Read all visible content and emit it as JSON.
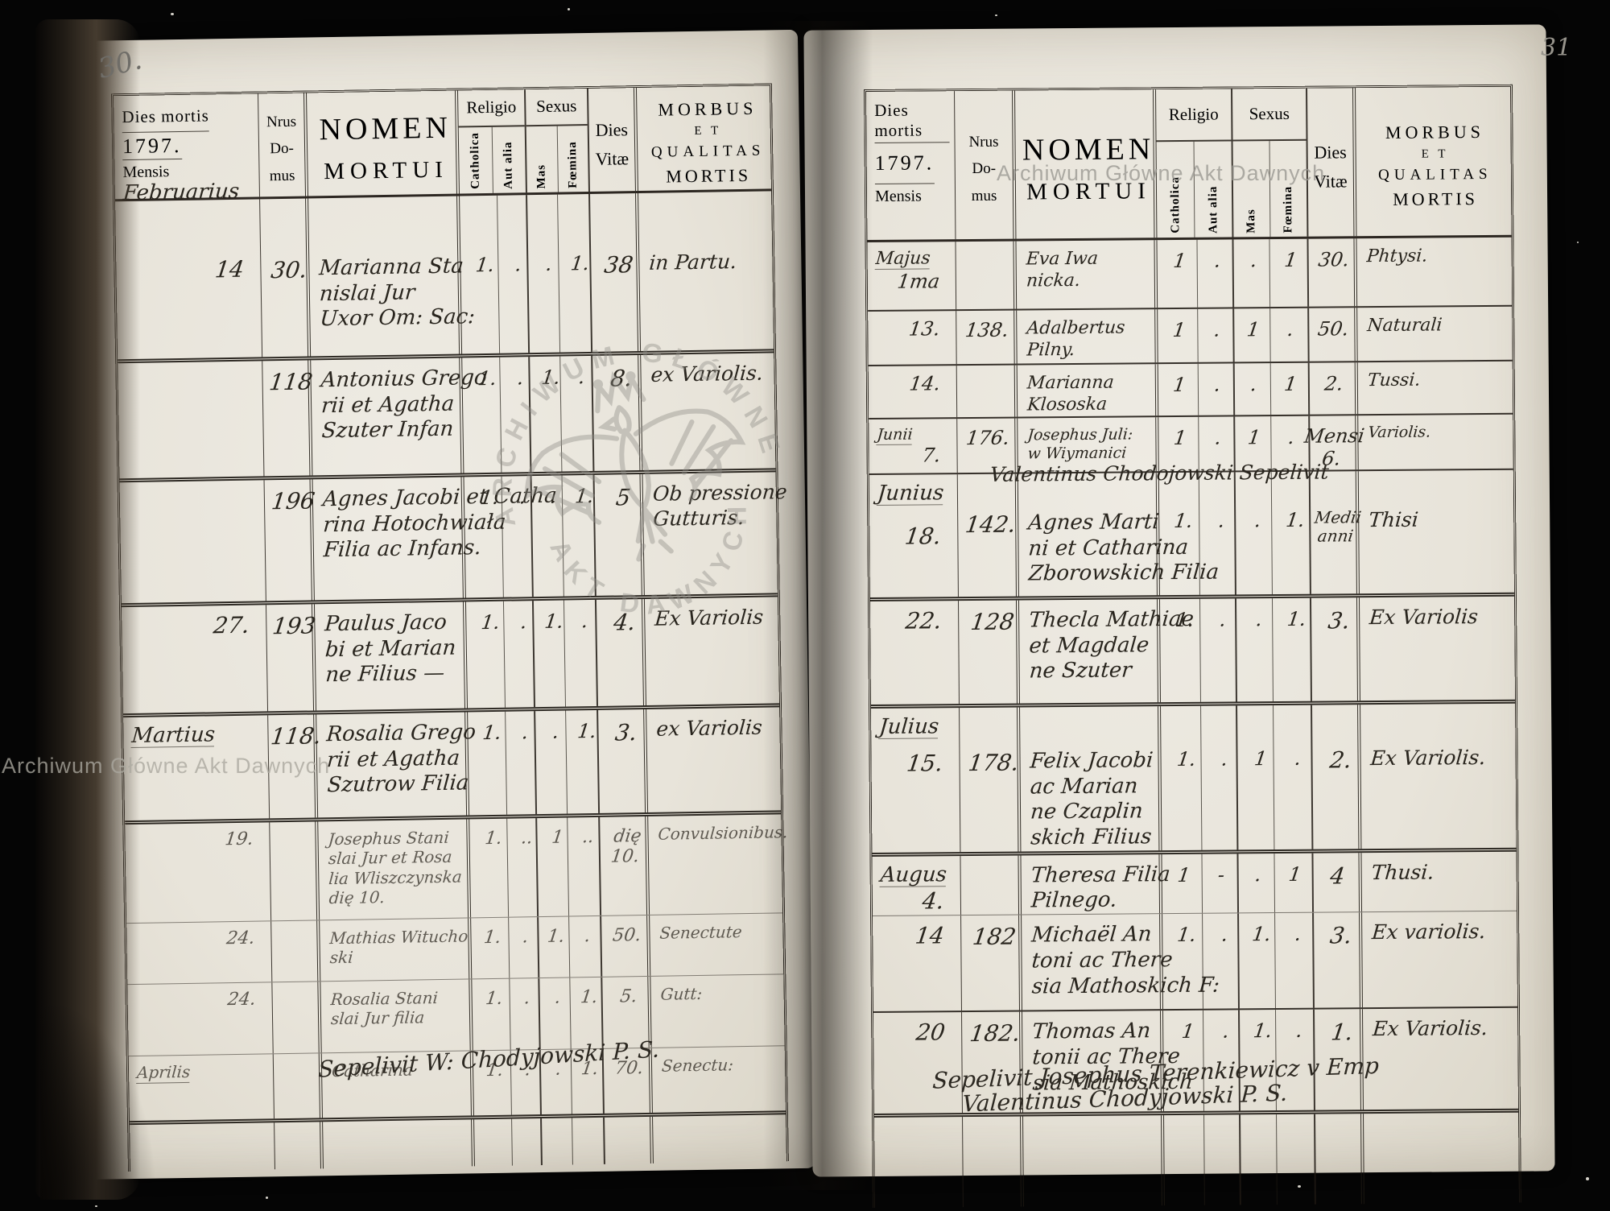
{
  "labels": {
    "dies_mortis": "Dies mortis",
    "mensis": "Mensis",
    "nrus": "Nrus",
    "domus_do": "Do-",
    "domus_mus": "mus",
    "nomen": "NOMEN",
    "mortui": "MORTUI",
    "religio": "Religio",
    "sexus": "Sexus",
    "catholica": "Catholica",
    "aut_alia": "Aut alia",
    "mas": "Mas",
    "foemina": "Fœmina",
    "dies": "Dies",
    "vitae": "Vitæ",
    "morbus": "MORBUS",
    "et": "E T",
    "qualitas": "QUALITAS",
    "mortis": "MORTIS"
  },
  "watermark": {
    "name_line": "Archiwum Główne Akt Dawnych",
    "seal_top": "ARCHIWUM GŁÓWNE",
    "seal_bottom": "AKT DAWNYCH"
  },
  "pages": [
    {
      "page_number": "30.",
      "year": "1797.",
      "mensis_hand": "Februarius",
      "rows": [
        {
          "day": "14",
          "nrus": "30.",
          "name": [
            "Marianna Sta",
            "nislai Jur",
            "Uxor Om: Sac:"
          ],
          "cath": "1.",
          "aut": ".",
          "mas": ".",
          "foem": "1.",
          "dies": "38",
          "morbus": [
            "in Partu."
          ]
        },
        {
          "nrus": "118",
          "name": [
            "Antonius Grego",
            "rii et Agatha",
            "Szuter Infan"
          ],
          "cath": "1.",
          "aut": ".",
          "mas": "1.",
          "foem": ".",
          "dies": "8.",
          "morbus": [
            "ex Variolis."
          ]
        },
        {
          "nrus": "196",
          "name": [
            "Agnes Jacobi et Catha",
            "rina Hotochwiała",
            "Filia ac Infans."
          ],
          "cath": "1.",
          "aut": ".",
          "mas": ".",
          "foem": "1.",
          "dies": "5",
          "morbus": [
            "Ob pressione",
            "Gutturis."
          ]
        },
        {
          "day": "27.",
          "nrus": "193",
          "name": [
            "Paulus Jaco",
            "bi et Marian",
            "ne Filius —"
          ],
          "cath": "1.",
          "aut": ".",
          "mas": "1.",
          "foem": ".",
          "dies": "4.",
          "morbus": [
            "Ex Variolis"
          ]
        },
        {
          "month": "Martius",
          "nrus": "118.",
          "name": [
            "Rosalia Grego",
            "rii et Agatha",
            "Szutrow Filia"
          ],
          "cath": "1.",
          "aut": ".",
          "mas": ".",
          "foem": "1.",
          "dies": "3.",
          "morbus": [
            "ex Variolis"
          ]
        },
        {
          "day": "19.",
          "name": [
            "Josephus Stani",
            "slai Jur et Rosa",
            "lia Wliszczynska",
            "dię 10."
          ],
          "cath": "1.",
          "aut": "..",
          "mas": "1",
          "foem": "..",
          "dies": "dię 10.",
          "morbus": [
            "Convulsionibus."
          ]
        },
        {
          "day": "24.",
          "name": [
            "Mathias Witucho",
            "ski"
          ],
          "cath": "1.",
          "aut": ".",
          "mas": "1.",
          "foem": ".",
          "dies": "50.",
          "morbus": [
            "Senectute"
          ]
        },
        {
          "day": "24.",
          "name": [
            "Rosalia Stani",
            "slai Jur filia"
          ],
          "cath": "1.",
          "aut": ".",
          "mas": ".",
          "foem": "1.",
          "dies": "5.",
          "morbus": [
            "Gutt:"
          ]
        },
        {
          "month": "Aprilis",
          "name": [
            "Catharina"
          ],
          "cath": "1.",
          "aut": ".",
          "mas": ".",
          "foem": "1.",
          "dies": "70.",
          "morbus": [
            "Senectu:"
          ]
        }
      ],
      "footer": [
        "Sepelivit W: Chodyjowski P. S."
      ]
    },
    {
      "page_number": "31",
      "year": "1797.",
      "mensis_hand": "",
      "rows": [
        {
          "month": "Majus",
          "day": "1ma",
          "name": [
            "Eva Iwa",
            "nicka."
          ],
          "cath": "1",
          "aut": ".",
          "mas": ".",
          "foem": "1",
          "dies": "30.",
          "morbus": [
            "Phtysi."
          ]
        },
        {
          "day": "13.",
          "nrus": "138.",
          "name": [
            "Adalbertus",
            "Pilny."
          ],
          "cath": "1",
          "aut": ".",
          "mas": "1",
          "foem": ".",
          "dies": "50.",
          "morbus": [
            "Naturali"
          ]
        },
        {
          "day": "14.",
          "name": [
            "Marianna",
            "Klososka"
          ],
          "cath": "1",
          "aut": ".",
          "mas": ".",
          "foem": "1",
          "dies": "2.",
          "morbus": [
            "Tussi."
          ]
        },
        {
          "month": "Junii",
          "day": "7.",
          "nrus": "176.",
          "name": [
            "Josephus Juli:",
            "w Wiymanici"
          ],
          "cath": "1",
          "aut": ".",
          "mas": "1",
          "foem": ".",
          "dies": "Mensi 6.",
          "morbus": [
            "Variolis."
          ]
        },
        {
          "month": "Junius",
          "day": "18.",
          "nrus": "142.",
          "note": "Valentinus Chodojowski Sepelivit",
          "name": [
            "Agnes Marti",
            "ni et Catharina",
            "Zborowskich Filia"
          ],
          "cath": "1.",
          "aut": ".",
          "mas": ".",
          "foem": "1.",
          "dies": "Medii anni",
          "morbus": [
            "Thisi"
          ]
        },
        {
          "day": "22.",
          "nrus": "128",
          "name": [
            "Thecla Mathiae",
            "et Magdale",
            "ne Szuter"
          ],
          "cath": "1.",
          "aut": ".",
          "mas": ".",
          "foem": "1.",
          "dies": "3.",
          "morbus": [
            "Ex Variolis"
          ]
        },
        {
          "month": "Julius",
          "day": "15.",
          "nrus": "178.",
          "name": [
            "Felix Jacobi",
            "ac Marian",
            "ne Czaplin",
            "skich Filius"
          ],
          "cath": "1.",
          "aut": ".",
          "mas": "1",
          "foem": ".",
          "dies": "2.",
          "morbus": [
            "Ex Variolis."
          ]
        },
        {
          "month": "Augus",
          "day": "4.",
          "name": [
            "Theresa Filia",
            "Pilnego."
          ],
          "cath": "1",
          "aut": "-",
          "mas": ".",
          "foem": "1",
          "dies": "4",
          "morbus": [
            "Thusi."
          ]
        },
        {
          "day": "14",
          "nrus": "182",
          "name": [
            "Michaël An",
            "toni ac There",
            "sia Mathoskich F:"
          ],
          "cath": "1.",
          "aut": ".",
          "mas": "1.",
          "foem": ".",
          "dies": "3.",
          "morbus": [
            "Ex variolis."
          ]
        },
        {
          "day": "20",
          "nrus": "182.",
          "name": [
            "Thomas An",
            "tonii ac There",
            "sia Mathoskich"
          ],
          "cath": "1",
          "aut": ".",
          "mas": "1.",
          "foem": ".",
          "dies": "1.",
          "morbus": [
            "Ex Variolis."
          ]
        }
      ],
      "footer": [
        "Sepelivit Josephus Terenkiewicz v Emp",
        "Valentinus Chodyjowski P. S."
      ]
    }
  ]
}
